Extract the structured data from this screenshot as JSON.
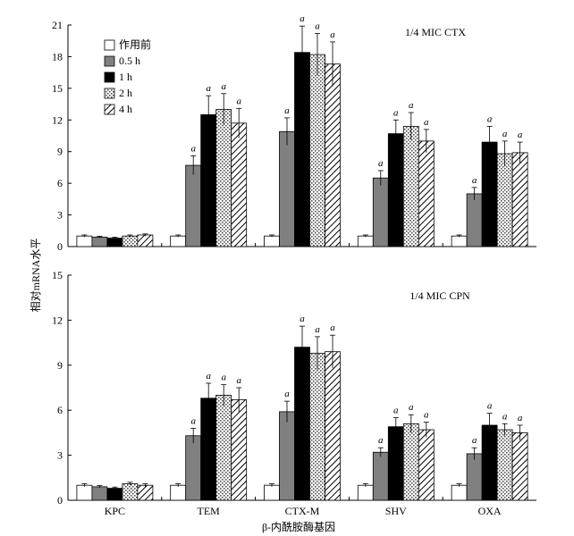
{
  "chart_data": [
    {
      "type": "bar",
      "panel_title": "1/4 MIC  CTX",
      "ylim": [
        0,
        21
      ],
      "yticks": [
        "0",
        "3",
        "6",
        "9",
        "12",
        "15",
        "18",
        "21"
      ],
      "categories": [
        "KPC",
        "TEM",
        "CTX-M",
        "SHV",
        "OXA"
      ],
      "series": [
        {
          "name": "作用前",
          "values": [
            1.0,
            1.0,
            1.0,
            1.0,
            1.0
          ],
          "errors": [
            0.1,
            0.1,
            0.1,
            0.1,
            0.1
          ],
          "sig": [
            "",
            "",
            "",
            "",
            ""
          ]
        },
        {
          "name": "0.5 h",
          "values": [
            0.9,
            7.7,
            10.9,
            6.5,
            5.0
          ],
          "errors": [
            0.08,
            0.9,
            1.3,
            0.7,
            0.6
          ],
          "sig": [
            "",
            "a",
            "a",
            "a",
            "a"
          ]
        },
        {
          "name": "1 h",
          "values": [
            0.8,
            12.5,
            18.4,
            10.7,
            9.9
          ],
          "errors": [
            0.08,
            1.8,
            2.5,
            1.3,
            1.5
          ],
          "sig": [
            "",
            "a",
            "a",
            "a",
            "a"
          ]
        },
        {
          "name": "2 h",
          "values": [
            1.0,
            13.0,
            18.2,
            11.4,
            8.8
          ],
          "errors": [
            0.1,
            1.5,
            2.0,
            1.3,
            1.2
          ],
          "sig": [
            "",
            "a",
            "a",
            "a",
            "a"
          ]
        },
        {
          "name": "4 h",
          "values": [
            1.1,
            11.7,
            17.3,
            10.0,
            8.9
          ],
          "errors": [
            0.1,
            1.4,
            2.1,
            1.1,
            1.0
          ],
          "sig": [
            "",
            "a",
            "a",
            "a",
            "a"
          ]
        }
      ],
      "legend": {
        "position": "top-left",
        "entries": [
          "作用前",
          "0.5 h",
          "1 h",
          "2 h",
          "4 h"
        ]
      },
      "xlabel": ""
    },
    {
      "type": "bar",
      "panel_title": "1/4 MIC   CPN",
      "ylim": [
        0,
        15
      ],
      "yticks": [
        "0",
        "3",
        "6",
        "9",
        "12",
        "15"
      ],
      "categories": [
        "KPC",
        "TEM",
        "CTX-M",
        "SHV",
        "OXA"
      ],
      "series": [
        {
          "name": "作用前",
          "values": [
            1.0,
            1.0,
            1.0,
            1.0,
            1.0
          ],
          "errors": [
            0.1,
            0.1,
            0.1,
            0.1,
            0.1
          ],
          "sig": [
            "",
            "",
            "",
            "",
            ""
          ]
        },
        {
          "name": "0.5 h",
          "values": [
            0.9,
            4.3,
            5.9,
            3.2,
            3.1
          ],
          "errors": [
            0.08,
            0.5,
            0.7,
            0.3,
            0.4
          ],
          "sig": [
            "",
            "a",
            "a",
            "a",
            "a"
          ]
        },
        {
          "name": "1 h",
          "values": [
            0.8,
            6.8,
            10.2,
            4.9,
            5.0
          ],
          "errors": [
            0.08,
            1.0,
            1.4,
            0.6,
            0.8
          ],
          "sig": [
            "",
            "a",
            "a",
            "a",
            "a"
          ]
        },
        {
          "name": "2 h",
          "values": [
            1.1,
            7.0,
            9.8,
            5.1,
            4.7
          ],
          "errors": [
            0.1,
            0.7,
            1.1,
            0.6,
            0.4
          ],
          "sig": [
            "",
            "a",
            "a",
            "a",
            "a"
          ]
        },
        {
          "name": "4 h",
          "values": [
            1.0,
            6.7,
            9.9,
            4.7,
            4.5
          ],
          "errors": [
            0.1,
            0.8,
            1.1,
            0.5,
            0.5
          ],
          "sig": [
            "",
            "a",
            "a",
            "a",
            "a"
          ]
        }
      ],
      "xlabel": "β-内酰胺酶基因"
    }
  ],
  "ylabel": "相对mRNA水平",
  "fills": {
    "作用前": "#ffffff",
    "0.5 h": "#808080",
    "1 h": "#000000",
    "2 h": "#e8e8e8",
    "4 h": "#ffffff",
    "grey_bar": "#808080",
    "axis": "#000000"
  }
}
